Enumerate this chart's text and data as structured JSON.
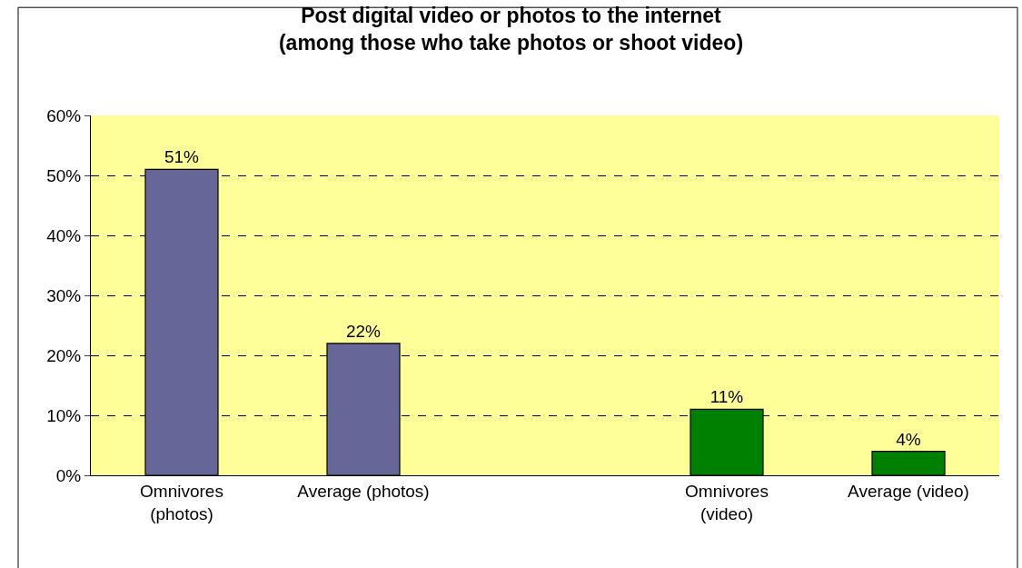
{
  "chart_data": {
    "type": "bar",
    "title": "Post digital video or photos to the internet\n(among those who take photos or shoot video)",
    "categories": [
      "Omnivores\n(photos)",
      "Average (photos)",
      null,
      "Omnivores\n(video)",
      "Average (video)"
    ],
    "values": [
      51,
      22,
      null,
      11,
      4
    ],
    "colors": [
      "#666699",
      "#666699",
      null,
      "#008000",
      "#008000"
    ],
    "value_labels": [
      "51%",
      "22%",
      null,
      "11%",
      "4%"
    ],
    "ylim": [
      0,
      60
    ],
    "yticks": [
      {
        "value": 0,
        "label": "0%"
      },
      {
        "value": 10,
        "label": "10%"
      },
      {
        "value": 20,
        "label": "20%"
      },
      {
        "value": 30,
        "label": "30%"
      },
      {
        "value": 40,
        "label": "40%"
      },
      {
        "value": 50,
        "label": "50%"
      },
      {
        "value": 60,
        "label": "60%"
      }
    ],
    "grid": "y",
    "legend": false
  }
}
